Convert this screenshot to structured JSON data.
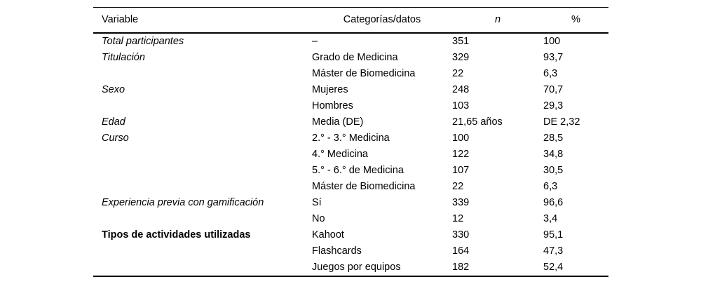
{
  "colors": {
    "background": "#ffffff",
    "text": "#000000",
    "rule": "#000000"
  },
  "table": {
    "headers": {
      "variable": "Variable",
      "category": "Categorías/datos",
      "n": "n",
      "pct": "%"
    },
    "rows": [
      {
        "variable": "Total participantes",
        "variable_style": "italic",
        "category": "–",
        "n": "351",
        "pct": "100"
      },
      {
        "variable": "Titulación",
        "variable_style": "italic",
        "category": "Grado de Medicina",
        "n": "329",
        "pct": "93,7"
      },
      {
        "variable": "",
        "variable_style": "",
        "category": "Máster de Biomedicina",
        "n": "22",
        "pct": "6,3"
      },
      {
        "variable": "Sexo",
        "variable_style": "italic",
        "category": "Mujeres",
        "n": "248",
        "pct": "70,7"
      },
      {
        "variable": "",
        "variable_style": "",
        "category": "Hombres",
        "n": "103",
        "pct": "29,3"
      },
      {
        "variable": "Edad",
        "variable_style": "italic",
        "category": "Media (DE)",
        "n": "21,65 años",
        "pct": "DE 2,32"
      },
      {
        "variable": "Curso",
        "variable_style": "italic",
        "category": "2.° - 3.° Medicina",
        "n": "100",
        "pct": "28,5"
      },
      {
        "variable": "",
        "variable_style": "",
        "category": "4.° Medicina",
        "n": "122",
        "pct": "34,8"
      },
      {
        "variable": "",
        "variable_style": "",
        "category": "5.° - 6.° de Medicina",
        "n": "107",
        "pct": "30,5"
      },
      {
        "variable": "",
        "variable_style": "",
        "category": "Máster de Biomedicina",
        "n": "22",
        "pct": "6,3"
      },
      {
        "variable": "Experiencia previa con gamificación",
        "variable_style": "italic",
        "category": "Sí",
        "n": "339",
        "pct": "96,6"
      },
      {
        "variable": "",
        "variable_style": "",
        "category": "No",
        "n": "12",
        "pct": "3,4"
      },
      {
        "variable": "Tipos de actividades utilizadas",
        "variable_style": "bold",
        "category": "Kahoot",
        "n": "330",
        "pct": "95,1"
      },
      {
        "variable": "",
        "variable_style": "",
        "category": "Flashcards",
        "n": "164",
        "pct": "47,3"
      },
      {
        "variable": "",
        "variable_style": "",
        "category": "Juegos por equipos",
        "n": "182",
        "pct": "52,4"
      }
    ]
  }
}
